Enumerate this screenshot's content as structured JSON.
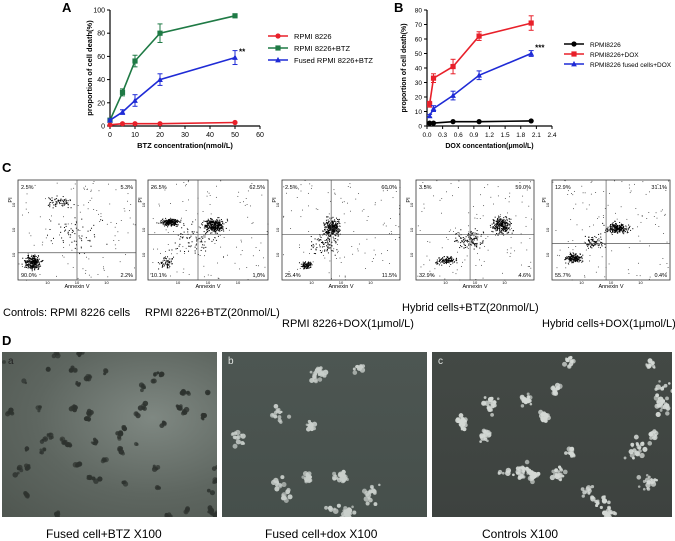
{
  "panel_letters": {
    "A": "A",
    "B": "B",
    "C": "C",
    "D": "D"
  },
  "chart_data": [
    {
      "type": "line",
      "panel": "A",
      "xlabel": "BTZ concentration(nmol/L)",
      "ylabel": "proportion of cell death(%)",
      "xlim": [
        0,
        60
      ],
      "ylim": [
        0,
        100
      ],
      "xticks": [
        "0",
        "10",
        "20",
        "30",
        "40",
        "50",
        "60"
      ],
      "yticks": [
        "0",
        "20",
        "40",
        "60",
        "80",
        "100"
      ],
      "legend_position": "right",
      "annotation": "**",
      "x": [
        0,
        5,
        10,
        20,
        50
      ],
      "series": [
        {
          "name": "RPMI 8226",
          "color": "#e8202a",
          "marker": "circle",
          "values": [
            1,
            2,
            2,
            2,
            3
          ],
          "err": [
            0.5,
            0.5,
            0.5,
            0.5,
            0.5
          ]
        },
        {
          "name": "RPMI 8226+BTZ",
          "color": "#1f7a45",
          "marker": "square",
          "values": [
            5,
            29,
            56,
            80,
            95
          ],
          "err": [
            1,
            3,
            5,
            8,
            1
          ]
        },
        {
          "name": "Fused RPMI 8226+BTZ",
          "color": "#1f2bd6",
          "marker": "triangle",
          "values": [
            5,
            12,
            22,
            40,
            59
          ],
          "err": [
            1,
            2,
            5,
            5,
            6
          ]
        }
      ]
    },
    {
      "type": "line",
      "panel": "B",
      "xlabel": "DOX concentation(μmol/L)",
      "ylabel": "proportion of cell death(%)",
      "xlim": [
        0,
        2.4
      ],
      "ylim": [
        0,
        80
      ],
      "xticks": [
        "0.0",
        "0.3",
        "0.6",
        "0.9",
        "1.2",
        "1.5",
        "1.8",
        "2.1",
        "2.4"
      ],
      "yticks": [
        "0",
        "10",
        "20",
        "30",
        "40",
        "50",
        "60",
        "70",
        "80"
      ],
      "legend_position": "right",
      "annotation": "***",
      "x": [
        0.05,
        0.125,
        0.5,
        1.0,
        2.0
      ],
      "series": [
        {
          "name": "RPMI8226",
          "color": "#000000",
          "marker": "circle",
          "values": [
            2,
            2,
            3,
            3,
            3.5
          ],
          "err": [
            0.3,
            0.3,
            0.3,
            0.3,
            0.3
          ]
        },
        {
          "name": "RPMI8226+DOX",
          "color": "#e8202a",
          "marker": "square",
          "values": [
            15,
            33,
            41,
            62,
            71
          ],
          "err": [
            2,
            3,
            5,
            3,
            5
          ]
        },
        {
          "name": "RPMI8226 fused cells+DOX",
          "color": "#1f2bd6",
          "marker": "triangle",
          "values": [
            7,
            12,
            21,
            35,
            50
          ],
          "err": [
            1,
            2,
            3,
            3,
            2
          ]
        }
      ]
    }
  ],
  "flow_panels": [
    {
      "id": "c1",
      "caption": "Controls: RPMI 8226 cells",
      "tl": "2.5%",
      "tr": "5.3%",
      "bl": "90.0%",
      "br": "2.2%",
      "ylabel": "PI",
      "xlabel": "Annexin V",
      "tick_label": "10"
    },
    {
      "id": "c2",
      "caption": "RPMI 8226+BTZ(20nmol/L)",
      "tl": "26.5%",
      "tr": "62.5%",
      "bl": "10.1%",
      "br": "1.0%",
      "ylabel": "PI",
      "xlabel": "Annexin V",
      "tick_label": "10"
    },
    {
      "id": "c3",
      "caption": "RPMI 8226+DOX(1μmol/L)",
      "tl": "2.5%",
      "tr": "60.0%",
      "bl": "25.4%",
      "br": "11.5%",
      "ylabel": "PI",
      "xlabel": "Annexin V",
      "tick_label": "10"
    },
    {
      "id": "c4",
      "caption": "Hybrid cells+BTZ(20nmol/L)",
      "tl": "3.5%",
      "tr": "59.0%",
      "bl": "32.9%",
      "br": "4.6%",
      "ylabel": "PI",
      "xlabel": "Annexin V",
      "tick_label": "10"
    },
    {
      "id": "c5",
      "caption": "Hybrid cells+DOX(1μmol/L)",
      "tl": "12.9%",
      "tr": "31.1%",
      "bl": "55.7%",
      "br": "0.4%",
      "ylabel": "PI",
      "xlabel": "Annexin V",
      "tick_label": "10"
    }
  ],
  "micro_panels": [
    {
      "id": "a",
      "letter": "a",
      "caption": "Fused cell+BTZ X100"
    },
    {
      "id": "b",
      "letter": "b",
      "caption": "Fused cell+dox X100"
    },
    {
      "id": "c",
      "letter": "c",
      "caption": "Controls X100"
    }
  ]
}
